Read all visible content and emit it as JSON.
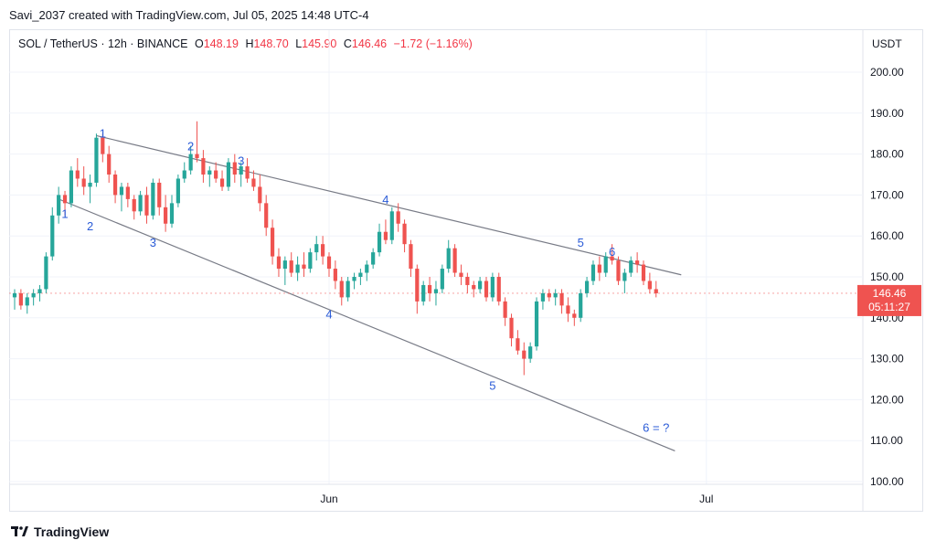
{
  "attribution": "Savi_2037 created with TradingView.com, Jul 05, 2025 14:48 UTC-4",
  "legend": {
    "symbol": "SOL / TetherUS · 12h · BINANCE",
    "open_label": "O",
    "open": "148.19",
    "high_label": "H",
    "high": "148.70",
    "low_label": "L",
    "low": "145.90",
    "close_label": "C",
    "close": "146.46",
    "change": "−1.72 (−1.16%)"
  },
  "price_axis": {
    "currency": "USDT",
    "last_price": "146.46",
    "countdown": "05:11:27"
  },
  "footer": {
    "brand": "TradingView"
  },
  "colors": {
    "up": "#26a69a",
    "down": "#ef5350",
    "label": "#2a5bd7",
    "trendline": "#787b86",
    "price_badge": "#ef5350"
  },
  "chart_data": {
    "type": "candlestick",
    "symbol": "SOL/USDT",
    "interval": "12h",
    "ylim": [
      100,
      200
    ],
    "y_ticks": [
      100,
      110,
      120,
      130,
      140,
      150,
      160,
      170,
      180,
      190,
      200
    ],
    "x_ticks": [
      {
        "label": "Jun",
        "index": 50
      },
      {
        "label": "Jul",
        "index": 110
      }
    ],
    "candles_ohlc": [
      [
        145,
        147,
        142,
        146
      ],
      [
        146,
        147,
        142,
        143
      ],
      [
        143,
        146,
        141,
        145
      ],
      [
        145,
        147,
        143,
        146
      ],
      [
        146,
        148,
        144,
        147
      ],
      [
        147,
        156,
        146,
        155
      ],
      [
        155,
        167,
        154,
        165
      ],
      [
        165,
        172,
        163,
        170
      ],
      [
        170,
        171,
        165,
        168
      ],
      [
        168,
        177,
        167,
        176
      ],
      [
        176,
        179,
        172,
        174
      ],
      [
        174,
        177,
        170,
        172
      ],
      [
        172,
        175,
        168,
        173
      ],
      [
        173,
        185,
        172,
        184
      ],
      [
        184,
        185,
        178,
        180
      ],
      [
        180,
        182,
        173,
        175
      ],
      [
        175,
        176,
        168,
        170
      ],
      [
        170,
        173,
        166,
        172
      ],
      [
        172,
        173,
        167,
        169
      ],
      [
        169,
        170,
        164,
        166
      ],
      [
        166,
        171,
        165,
        170
      ],
      [
        170,
        172,
        163,
        165
      ],
      [
        165,
        174,
        164,
        173
      ],
      [
        173,
        174,
        165,
        167
      ],
      [
        167,
        170,
        161,
        163
      ],
      [
        163,
        170,
        162,
        168
      ],
      [
        168,
        175,
        167,
        174
      ],
      [
        174,
        178,
        173,
        176
      ],
      [
        176,
        182,
        175,
        180
      ],
      [
        180,
        188,
        178,
        179
      ],
      [
        179,
        181,
        173,
        175
      ],
      [
        175,
        177,
        172,
        176
      ],
      [
        176,
        178,
        173,
        174
      ],
      [
        174,
        176,
        171,
        172
      ],
      [
        172,
        179,
        171,
        178
      ],
      [
        178,
        180,
        173,
        175
      ],
      [
        175,
        178,
        172,
        177
      ],
      [
        177,
        179,
        173,
        174
      ],
      [
        174,
        176,
        171,
        172
      ],
      [
        172,
        175,
        166,
        168
      ],
      [
        168,
        170,
        160,
        162
      ],
      [
        162,
        164,
        153,
        155
      ],
      [
        155,
        157,
        150,
        152
      ],
      [
        152,
        155,
        148,
        154
      ],
      [
        154,
        156,
        150,
        151
      ],
      [
        151,
        155,
        149,
        153
      ],
      [
        153,
        156,
        150,
        152
      ],
      [
        152,
        157,
        151,
        156
      ],
      [
        156,
        160,
        154,
        158
      ],
      [
        158,
        160,
        153,
        155
      ],
      [
        155,
        156,
        150,
        152
      ],
      [
        152,
        154,
        147,
        149
      ],
      [
        149,
        150,
        143,
        145
      ],
      [
        145,
        150,
        144,
        149
      ],
      [
        149,
        151,
        147,
        150
      ],
      [
        150,
        152,
        148,
        151
      ],
      [
        151,
        154,
        149,
        153
      ],
      [
        153,
        157,
        152,
        156
      ],
      [
        156,
        163,
        155,
        161
      ],
      [
        161,
        164,
        158,
        159
      ],
      [
        159,
        167,
        158,
        166
      ],
      [
        166,
        168,
        161,
        163
      ],
      [
        163,
        164,
        156,
        158
      ],
      [
        158,
        159,
        150,
        152
      ],
      [
        152,
        153,
        141,
        144
      ],
      [
        144,
        149,
        143,
        148
      ],
      [
        148,
        150,
        144,
        146
      ],
      [
        146,
        149,
        143,
        147
      ],
      [
        147,
        153,
        146,
        152
      ],
      [
        152,
        159,
        151,
        157
      ],
      [
        157,
        158,
        150,
        151
      ],
      [
        151,
        153,
        148,
        150
      ],
      [
        150,
        151,
        146,
        148
      ],
      [
        148,
        149,
        145,
        147
      ],
      [
        147,
        150,
        146,
        149
      ],
      [
        149,
        150,
        144,
        145
      ],
      [
        145,
        151,
        144,
        150
      ],
      [
        150,
        151,
        143,
        144
      ],
      [
        144,
        145,
        138,
        140
      ],
      [
        140,
        141,
        133,
        135
      ],
      [
        135,
        137,
        131,
        132
      ],
      [
        132,
        134,
        126,
        130
      ],
      [
        130,
        134,
        129,
        133
      ],
      [
        133,
        145,
        132,
        144
      ],
      [
        144,
        147,
        142,
        146
      ],
      [
        146,
        147,
        144,
        145
      ],
      [
        145,
        147,
        143,
        146
      ],
      [
        146,
        147,
        141,
        143
      ],
      [
        143,
        145,
        139,
        141
      ],
      [
        141,
        142,
        138,
        140
      ],
      [
        140,
        147,
        139,
        146
      ],
      [
        146,
        150,
        145,
        149
      ],
      [
        149,
        154,
        148,
        153
      ],
      [
        153,
        155,
        149,
        151
      ],
      [
        151,
        156,
        150,
        155
      ],
      [
        155,
        158,
        153,
        154
      ],
      [
        154,
        155,
        148,
        149
      ],
      [
        149,
        152,
        146,
        151
      ],
      [
        151,
        155,
        150,
        154
      ],
      [
        154,
        156,
        151,
        153
      ],
      [
        153,
        154,
        148,
        149
      ],
      [
        149,
        151,
        146,
        147
      ],
      [
        147,
        149,
        145,
        146
      ]
    ],
    "trendlines": [
      {
        "name": "upper",
        "from": {
          "index": 13,
          "price": 184.5
        },
        "to": {
          "index": 106,
          "price": 150.5
        }
      },
      {
        "name": "lower",
        "from": {
          "index": 7,
          "price": 169
        },
        "to": {
          "index": 105,
          "price": 107.5
        }
      }
    ],
    "wave_labels": [
      {
        "text": "1",
        "index": 14,
        "price": 185.2
      },
      {
        "text": "2",
        "index": 28,
        "price": 182
      },
      {
        "text": "3",
        "index": 36,
        "price": 178.5
      },
      {
        "text": "4",
        "index": 59,
        "price": 169
      },
      {
        "text": "5",
        "index": 90,
        "price": 158.5
      },
      {
        "text": "6",
        "index": 95,
        "price": 156.3
      },
      {
        "text": "1",
        "index": 8,
        "price": 165.5
      },
      {
        "text": "2",
        "index": 12,
        "price": 162.5
      },
      {
        "text": "3",
        "index": 22,
        "price": 158.5
      },
      {
        "text": "4",
        "index": 50,
        "price": 141
      },
      {
        "text": "5",
        "index": 76,
        "price": 123.5
      },
      {
        "text": "6 = ?",
        "index": 102,
        "price": 113.3
      }
    ]
  }
}
